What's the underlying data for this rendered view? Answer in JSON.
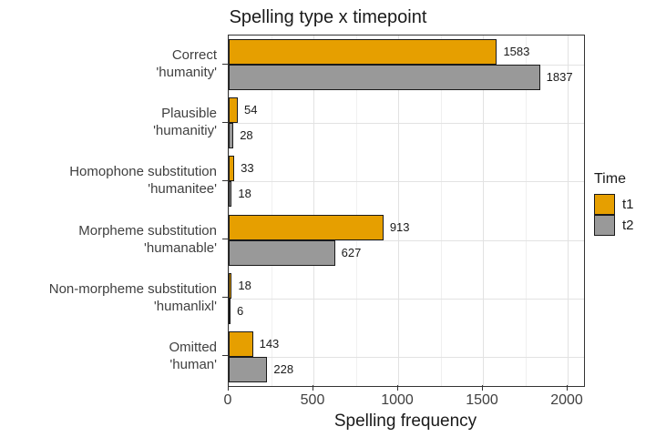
{
  "chart_data": {
    "type": "bar",
    "orientation": "horizontal",
    "title": "Spelling type x timepoint",
    "xlabel": "Spelling frequency",
    "ylabel": "",
    "categories": [
      [
        "Correct",
        "'humanity'"
      ],
      [
        "Plausible",
        "'humanitiy'"
      ],
      [
        "Homophone substitution",
        "'humanitee'"
      ],
      [
        "Morpheme substitution",
        "'humanable'"
      ],
      [
        "Non-morpheme substitution",
        "'humanlixl'"
      ],
      [
        "Omitted",
        "'human'"
      ]
    ],
    "series": [
      {
        "name": "t1",
        "color": "#E69F00",
        "values": [
          1583,
          54,
          33,
          913,
          18,
          143
        ]
      },
      {
        "name": "t2",
        "color": "#999999",
        "values": [
          1837,
          28,
          18,
          627,
          6,
          228
        ]
      }
    ],
    "x_ticks": [
      0,
      500,
      1000,
      1500,
      2000
    ],
    "x_minor_ticks": [
      250,
      750,
      1250,
      1750
    ],
    "xlim": [
      0,
      2090
    ],
    "grid": true,
    "value_labels": true,
    "bar_outline": "#1a1a1a",
    "legend": {
      "title": "Time",
      "position": "right",
      "entries": [
        "t1",
        "t2"
      ]
    }
  }
}
